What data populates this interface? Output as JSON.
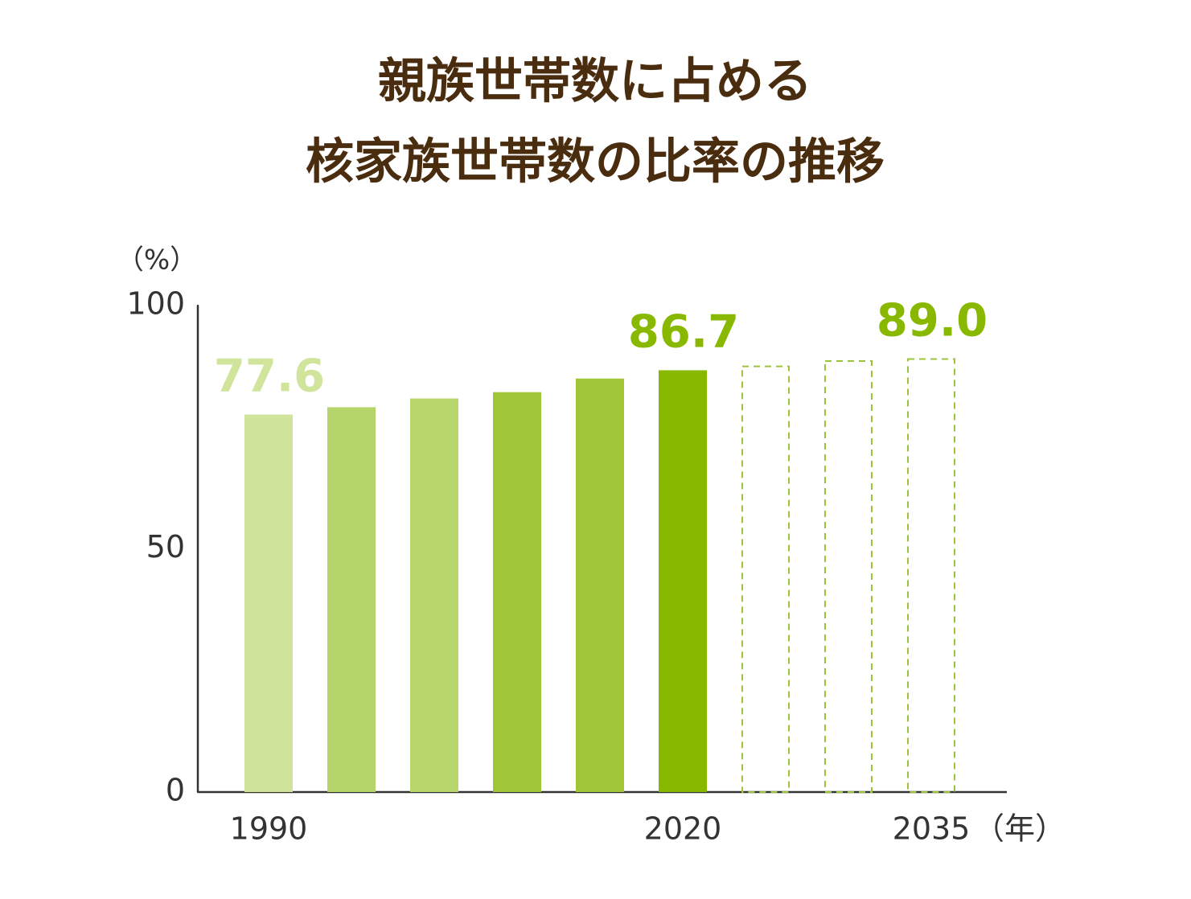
{
  "chart_data": {
    "type": "bar",
    "title": [
      "親族世帯数に占める",
      "核家族世帯数の比率の推移"
    ],
    "y_unit": "（%）",
    "x_unit": "（年）",
    "categories": [
      "1990",
      null,
      null,
      null,
      null,
      "2020",
      null,
      null,
      "2035"
    ],
    "values": [
      77.6,
      79.1,
      80.9,
      82.2,
      85.0,
      86.7,
      87.5,
      88.6,
      89.0
    ],
    "value_labels": [
      "77.6",
      null,
      null,
      null,
      null,
      "86.7",
      null,
      null,
      "89.0"
    ],
    "colors": [
      "#d1e49c",
      "#b5d56a",
      "#b8d66c",
      "#a0c637",
      "#a0c637",
      "#88b800",
      "#9cc43a",
      "#9cc43a",
      "#9cc43a"
    ],
    "label_colors": [
      "#d1e49c",
      null,
      null,
      null,
      null,
      "#88b800",
      null,
      null,
      "#88b800"
    ],
    "styles": [
      "solid",
      "solid",
      "solid",
      "solid",
      "solid",
      "solid",
      "dashed",
      "dashed",
      "dashed"
    ],
    "ylim": [
      0,
      100
    ],
    "yticks": [
      0,
      50,
      100
    ],
    "grid": false
  }
}
